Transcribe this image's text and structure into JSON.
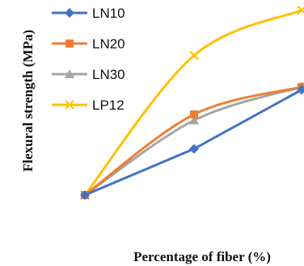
{
  "chart_data": {
    "type": "line",
    "title": "",
    "xlabel": "Percentage of fiber (%)",
    "ylabel": "Flexural strength (MPa)",
    "x": [
      0,
      1,
      2
    ],
    "series": [
      {
        "name": "LN10",
        "values": [
          0.0,
          0.47,
          1.07
        ],
        "color": "#4472C4",
        "marker": "diamond"
      },
      {
        "name": "LN20",
        "values": [
          0.0,
          0.82,
          1.1
        ],
        "color": "#ED7D31",
        "marker": "square"
      },
      {
        "name": "LN30",
        "values": [
          0.0,
          0.76,
          1.1
        ],
        "color": "#A5A5A5",
        "marker": "triangle"
      },
      {
        "name": "LP12",
        "values": [
          0.0,
          1.42,
          1.88
        ],
        "color": "#FFC000",
        "marker": "x"
      }
    ],
    "legend_position": "top-left",
    "grid": false,
    "axes_visible": false
  }
}
